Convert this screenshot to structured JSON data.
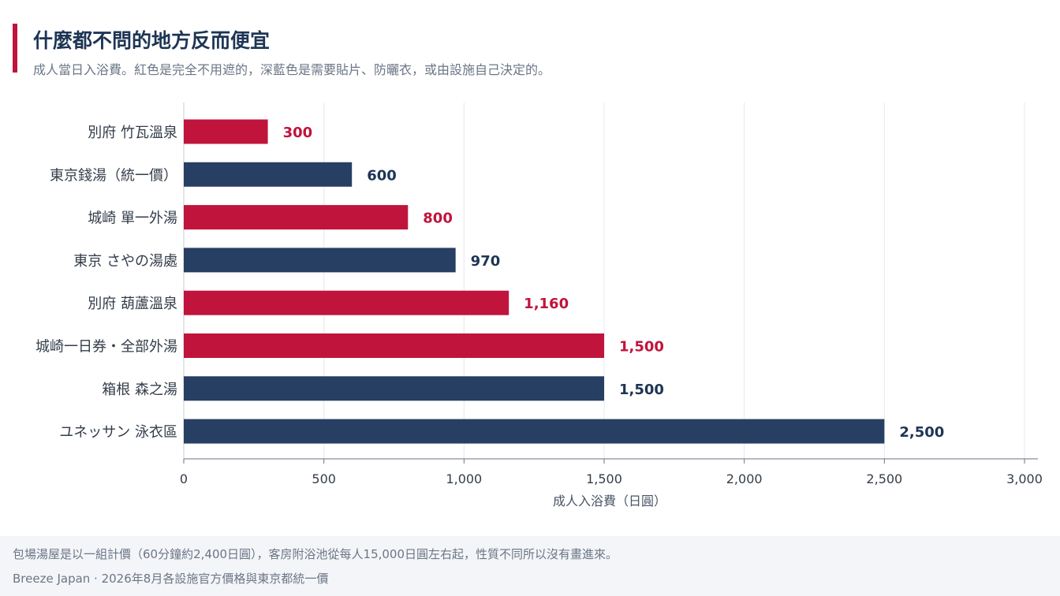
{
  "header": {
    "title": "什麼都不問的地方反而便宜",
    "subtitle": "成人當日入浴費。紅色是完全不用遮的，深藍色是需要貼片、防曬衣，或由設施自己決定的。"
  },
  "chart_data": {
    "type": "bar",
    "orientation": "horizontal",
    "categories": [
      "別府 竹瓦溫泉",
      "東京錢湯（統一價）",
      "城崎 單一外湯",
      "東京 さやの湯處",
      "別府 葫蘆溫泉",
      "城崎一日券・全部外湯",
      "箱根 森之湯",
      "ユネッサン 泳衣區"
    ],
    "values": [
      300,
      600,
      800,
      970,
      1160,
      1500,
      1500,
      2500
    ],
    "value_labels": [
      "300",
      "600",
      "800",
      "970",
      "1,160",
      "1,500",
      "1,500",
      "2,500"
    ],
    "bar_colors": [
      "#c0143c",
      "#273f63",
      "#c0143c",
      "#273f63",
      "#c0143c",
      "#c0143c",
      "#273f63",
      "#273f63"
    ],
    "label_colors": [
      "#c0143c",
      "#1e3554",
      "#c0143c",
      "#1e3554",
      "#c0143c",
      "#c0143c",
      "#1e3554",
      "#1e3554"
    ],
    "xlim": [
      0,
      3000
    ],
    "xticks": [
      0,
      500,
      1000,
      1500,
      2000,
      2500,
      3000
    ],
    "xtick_labels": [
      "0",
      "500",
      "1,000",
      "1,500",
      "2,000",
      "2,500",
      "3,000"
    ],
    "xlabel": "成人入浴費（日圓）",
    "ylabel": "",
    "grid": true,
    "colors": {
      "red": "#c0143c",
      "navy": "#273f63"
    }
  },
  "footer": {
    "note": "包場湯屋是以一組計價（60分鐘約2,400日圓），客房附浴池從每人15,000日圓左右起，性質不同所以沒有畫進來。",
    "source": "Breeze Japan · 2026年8月各設施官方價格與東京都統一價"
  }
}
